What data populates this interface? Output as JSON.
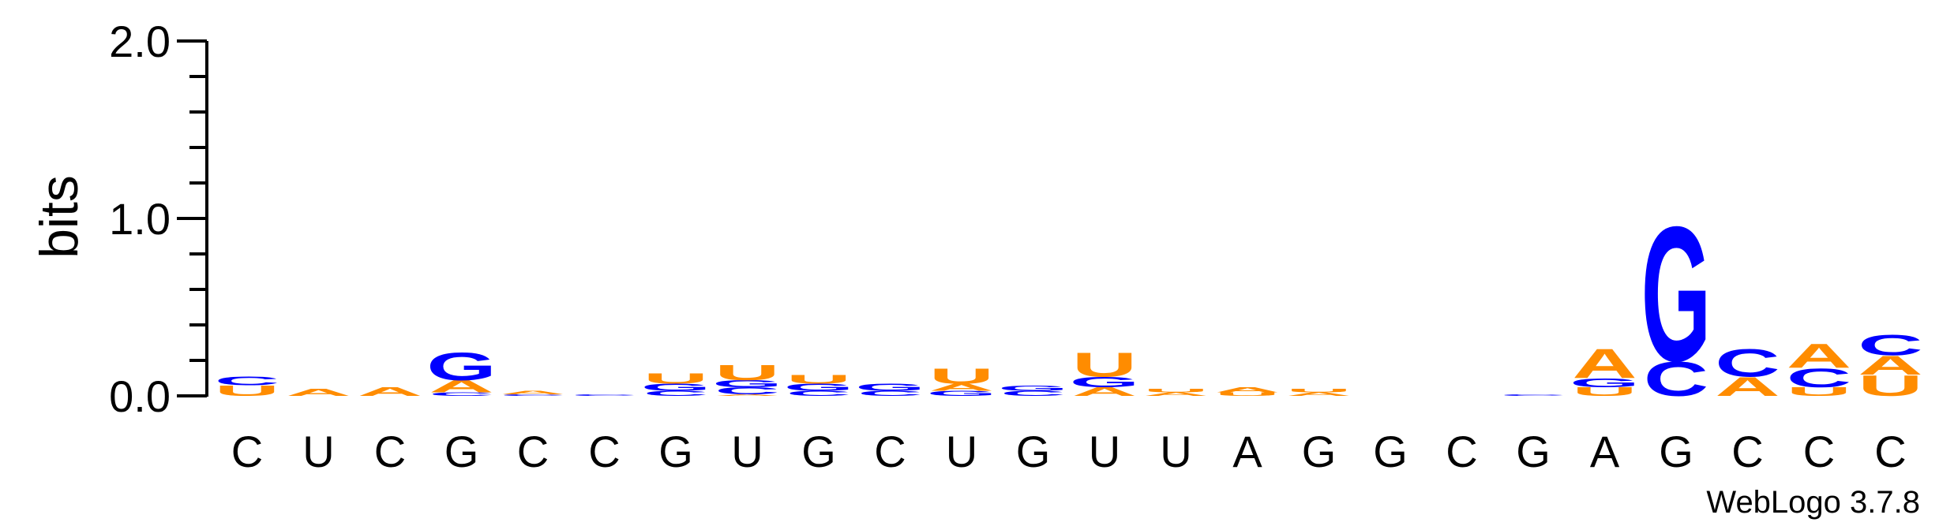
{
  "chart_data": {
    "type": "sequence-logo",
    "ylabel": "bits",
    "ylim": [
      0,
      2.0
    ],
    "yticks": [
      {
        "value": 0.0,
        "label": "0.0"
      },
      {
        "value": 1.0,
        "label": "1.0"
      },
      {
        "value": 2.0,
        "label": "2.0"
      }
    ],
    "colors": {
      "A": "#ff8c00",
      "U": "#ff8c00",
      "C": "#0000ff",
      "G": "#0000ff"
    },
    "positions": [
      {
        "label": "C",
        "stack": [
          {
            "letter": "U",
            "bits": 0.06
          },
          {
            "letter": "C",
            "bits": 0.05
          }
        ]
      },
      {
        "label": "U",
        "stack": [
          {
            "letter": "A",
            "bits": 0.04
          }
        ]
      },
      {
        "label": "C",
        "stack": [
          {
            "letter": "A",
            "bits": 0.05
          }
        ]
      },
      {
        "label": "G",
        "stack": [
          {
            "letter": "C",
            "bits": 0.02
          },
          {
            "letter": "A",
            "bits": 0.07
          },
          {
            "letter": "G",
            "bits": 0.16
          }
        ]
      },
      {
        "label": "C",
        "stack": [
          {
            "letter": "C",
            "bits": 0.01
          },
          {
            "letter": "A",
            "bits": 0.02
          }
        ]
      },
      {
        "label": "C",
        "stack": [
          {
            "letter": "C",
            "bits": 0.01
          }
        ]
      },
      {
        "label": "G",
        "stack": [
          {
            "letter": "C",
            "bits": 0.03
          },
          {
            "letter": "G",
            "bits": 0.04
          },
          {
            "letter": "U",
            "bits": 0.06
          }
        ]
      },
      {
        "label": "U",
        "stack": [
          {
            "letter": "A",
            "bits": 0.01
          },
          {
            "letter": "C",
            "bits": 0.04
          },
          {
            "letter": "G",
            "bits": 0.04
          },
          {
            "letter": "U",
            "bits": 0.09
          }
        ]
      },
      {
        "label": "G",
        "stack": [
          {
            "letter": "C",
            "bits": 0.03
          },
          {
            "letter": "G",
            "bits": 0.04
          },
          {
            "letter": "U",
            "bits": 0.05
          }
        ]
      },
      {
        "label": "C",
        "stack": [
          {
            "letter": "C",
            "bits": 0.03
          },
          {
            "letter": "G",
            "bits": 0.04
          }
        ]
      },
      {
        "label": "U",
        "stack": [
          {
            "letter": "G",
            "bits": 0.03
          },
          {
            "letter": "A",
            "bits": 0.04
          },
          {
            "letter": "U",
            "bits": 0.09
          }
        ]
      },
      {
        "label": "G",
        "stack": [
          {
            "letter": "C",
            "bits": 0.03
          },
          {
            "letter": "G",
            "bits": 0.03
          }
        ]
      },
      {
        "label": "U",
        "stack": [
          {
            "letter": "A",
            "bits": 0.05
          },
          {
            "letter": "G",
            "bits": 0.06
          },
          {
            "letter": "U",
            "bits": 0.14
          }
        ]
      },
      {
        "label": "U",
        "stack": [
          {
            "letter": "A",
            "bits": 0.02
          },
          {
            "letter": "U",
            "bits": 0.02
          }
        ]
      },
      {
        "label": "A",
        "stack": [
          {
            "letter": "U",
            "bits": 0.02
          },
          {
            "letter": "A",
            "bits": 0.03
          }
        ]
      },
      {
        "label": "G",
        "stack": [
          {
            "letter": "A",
            "bits": 0.02
          },
          {
            "letter": "U",
            "bits": 0.02
          }
        ]
      },
      {
        "label": "G",
        "stack": []
      },
      {
        "label": "C",
        "stack": []
      },
      {
        "label": "G",
        "stack": [
          {
            "letter": "C",
            "bits": 0.01
          }
        ]
      },
      {
        "label": "A",
        "stack": [
          {
            "letter": "U",
            "bits": 0.05
          },
          {
            "letter": "G",
            "bits": 0.05
          },
          {
            "letter": "A",
            "bits": 0.17
          }
        ]
      },
      {
        "label": "G",
        "stack": [
          {
            "letter": "C",
            "bits": 0.2
          },
          {
            "letter": "G",
            "bits": 0.78
          }
        ]
      },
      {
        "label": "C",
        "stack": [
          {
            "letter": "A",
            "bits": 0.11
          },
          {
            "letter": "C",
            "bits": 0.16
          }
        ]
      },
      {
        "label": "C",
        "stack": [
          {
            "letter": "U",
            "bits": 0.05
          },
          {
            "letter": "C",
            "bits": 0.11
          },
          {
            "letter": "A",
            "bits": 0.14
          }
        ]
      },
      {
        "label": "C",
        "stack": [
          {
            "letter": "U",
            "bits": 0.12
          },
          {
            "letter": "A",
            "bits": 0.11
          },
          {
            "letter": "C",
            "bits": 0.12
          }
        ]
      }
    ]
  },
  "credit": "WebLogo 3.7.8"
}
